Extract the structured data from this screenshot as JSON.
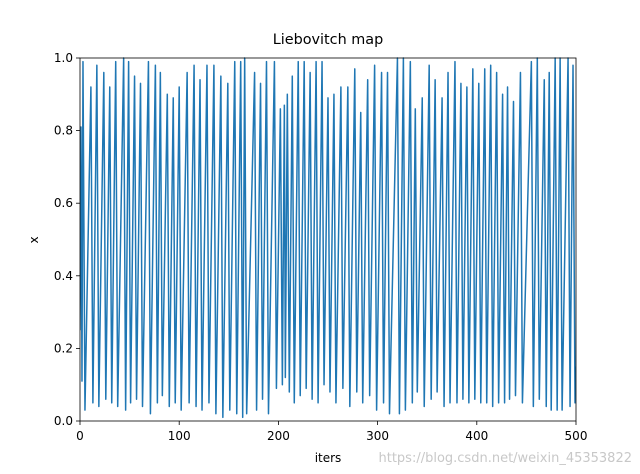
{
  "chart_data": {
    "type": "line",
    "title": "Liebovitch map",
    "x_label": "iters",
    "y_label": "x",
    "watermark": "https://blog.csdn.net/weixin_45353822",
    "xlim": [
      0,
      500
    ],
    "ylim": [
      0,
      1.0
    ],
    "xticks": [
      0,
      100,
      200,
      300,
      400,
      500
    ],
    "yticks": [
      {
        "value": 0,
        "label": "0.0"
      },
      0.2,
      0.4,
      0.6,
      0.8,
      {
        "value": 1,
        "label": "1.0"
      }
    ],
    "grid": false,
    "x": [
      0,
      1,
      2,
      3,
      5,
      11,
      13,
      17,
      19,
      24,
      26,
      30,
      32,
      36,
      38,
      44,
      46,
      49,
      51,
      55,
      57,
      61,
      63,
      69,
      71,
      76,
      78,
      81,
      83,
      88,
      90,
      94,
      96,
      100,
      102,
      108,
      110,
      115,
      117,
      121,
      123,
      128,
      130,
      135,
      137,
      142,
      144,
      149,
      151,
      156,
      158,
      162,
      164,
      166,
      168,
      176,
      178,
      182,
      184,
      188,
      190,
      196,
      198,
      202,
      204,
      206,
      207,
      209,
      211,
      214,
      216,
      220,
      222,
      226,
      228,
      232,
      234,
      238,
      240,
      244,
      246,
      250,
      252,
      256,
      258,
      263,
      265,
      270,
      272,
      277,
      279,
      283,
      285,
      290,
      292,
      297,
      299,
      304,
      306,
      310,
      312,
      320,
      322,
      326,
      328,
      333,
      335,
      338,
      340,
      345,
      347,
      352,
      354,
      358,
      360,
      365,
      367,
      371,
      373,
      378,
      380,
      384,
      386,
      390,
      392,
      396,
      398,
      402,
      404,
      408,
      410,
      414,
      416,
      420,
      422,
      426,
      428,
      431,
      433,
      437,
      439,
      444,
      446,
      455,
      457,
      461,
      463,
      468,
      470,
      473,
      475,
      479,
      481,
      484,
      486,
      492,
      494,
      497,
      499,
      500
    ],
    "series": [
      {
        "color": "#1f77b4",
        "values": [
          0.25,
          0.81,
          0.11,
          0.99,
          0.03,
          0.92,
          0.05,
          0.98,
          0.04,
          0.96,
          0.06,
          0.92,
          0.05,
          0.99,
          0.04,
          1.0,
          0.03,
          0.99,
          0.05,
          0.95,
          0.06,
          0.93,
          0.04,
          0.99,
          0.02,
          0.98,
          0.05,
          0.96,
          0.07,
          0.9,
          0.04,
          0.89,
          0.05,
          0.92,
          0.03,
          0.96,
          0.05,
          0.98,
          0.04,
          0.94,
          0.03,
          0.98,
          0.05,
          0.98,
          0.02,
          0.95,
          0.01,
          0.93,
          0.03,
          0.99,
          0.02,
          0.99,
          0.01,
          1.0,
          0.02,
          0.96,
          0.03,
          0.93,
          0.06,
          0.99,
          0.02,
          0.99,
          0.09,
          0.86,
          0.1,
          0.87,
          0.12,
          0.9,
          0.08,
          0.95,
          0.05,
          0.99,
          0.07,
          0.99,
          0.09,
          0.96,
          0.06,
          0.99,
          0.05,
          0.99,
          0.1,
          0.89,
          0.08,
          0.9,
          0.05,
          0.92,
          0.09,
          0.92,
          0.04,
          0.97,
          0.08,
          0.85,
          0.05,
          0.94,
          0.07,
          0.98,
          0.03,
          0.96,
          0.05,
          0.96,
          0.02,
          1.0,
          0.02,
          1.0,
          0.03,
          0.99,
          0.05,
          0.86,
          0.08,
          0.89,
          0.04,
          0.98,
          0.06,
          0.94,
          0.08,
          0.89,
          0.04,
          0.96,
          0.05,
          0.99,
          0.05,
          0.93,
          0.06,
          0.92,
          0.05,
          0.97,
          0.06,
          0.93,
          0.05,
          0.97,
          0.05,
          0.98,
          0.04,
          0.96,
          0.05,
          0.9,
          0.05,
          0.92,
          0.06,
          0.88,
          0.07,
          0.96,
          0.05,
          0.99,
          0.04,
          1.0,
          0.06,
          0.94,
          0.04,
          0.96,
          0.03,
          1.0,
          0.03,
          1.0,
          0.03,
          1.0,
          0.04,
          0.98,
          0.05,
          0.15
        ]
      }
    ]
  }
}
